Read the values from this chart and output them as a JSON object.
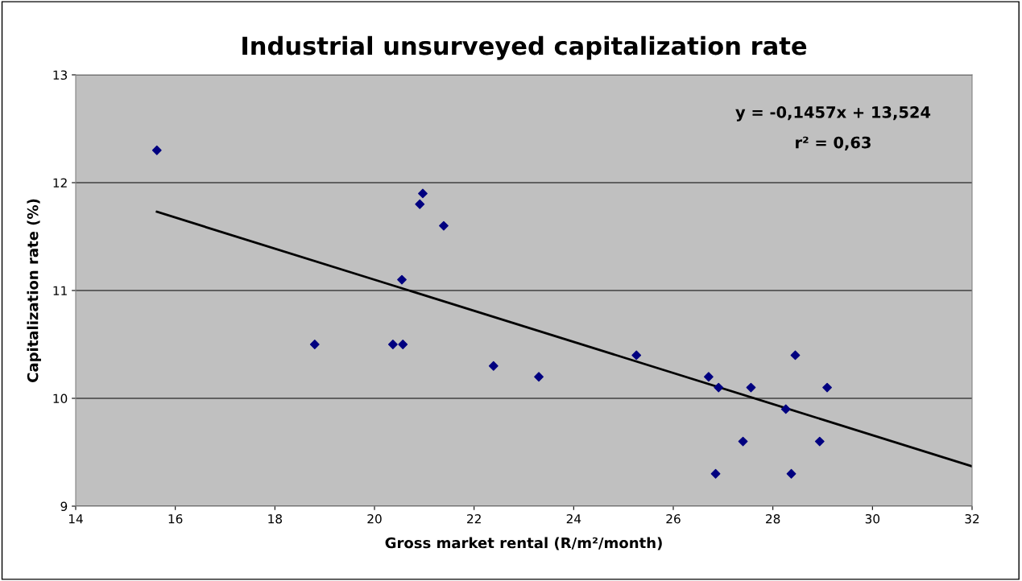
{
  "chart_data": {
    "type": "scatter",
    "title": "Industrial unsurveyed capitalization rate",
    "xlabel": "Gross market rental (R/m²/month)",
    "ylabel": "Capitalization rate (%)",
    "annotations": [
      "y = -0,1457x + 13,524",
      "r² = 0,63"
    ],
    "series": [
      {
        "marker": "diamond",
        "color": "#000080",
        "x": [
          15.63,
          18.8,
          20.37,
          20.57,
          20.55,
          20.91,
          20.97,
          21.39,
          22.39,
          23.3,
          25.26,
          26.71,
          26.91,
          26.85,
          27.4,
          27.56,
          28.26,
          28.37,
          28.45,
          28.94,
          29.09
        ],
        "values": [
          12.3,
          10.5,
          10.5,
          10.5,
          11.1,
          11.8,
          11.9,
          11.6,
          10.3,
          10.2,
          10.4,
          10.2,
          10.1,
          9.3,
          9.6,
          10.1,
          9.9,
          9.3,
          10.4,
          9.6,
          10.1
        ]
      },
      {
        "type": "line",
        "marker": "none",
        "color": "#000000",
        "x": [
          15.63,
          32
        ],
        "values": [
          11.73,
          9.37
        ]
      }
    ],
    "xlim": [
      14,
      32
    ],
    "xticks": [
      14,
      16,
      18,
      20,
      22,
      24,
      26,
      28,
      30,
      32
    ],
    "ylim": [
      9,
      13
    ],
    "yticks": [
      9,
      10,
      11,
      12,
      13
    ],
    "grid": "y"
  }
}
